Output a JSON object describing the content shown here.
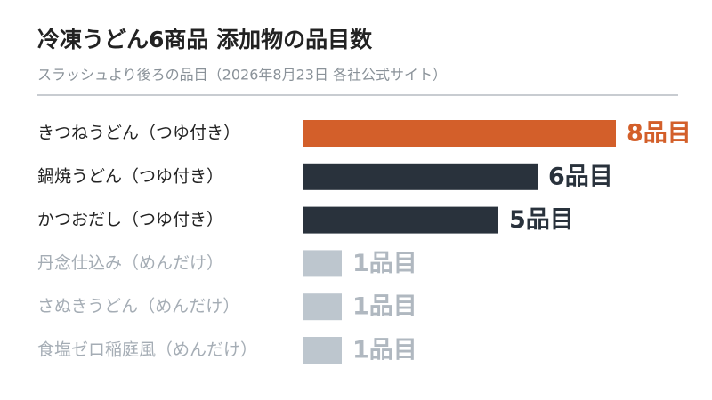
{
  "chart_data": {
    "type": "hbar",
    "title": "冷凍うどん6商品 添加物の品目数",
    "subtitle": "スラッシュより後ろの品目（2026年8月23日 各社公式サイト）",
    "categories": [
      "きつねうどん（つゆ付き）",
      "鍋焼うどん（つゆ付き）",
      "かつおだし（つゆ付き）",
      "丹念仕込み（めんだけ）",
      "さぬきうどん（めんだけ）",
      "食塩ゼロ稲庭風（めんだけ）"
    ],
    "values": [
      8,
      6,
      5,
      1,
      1,
      1
    ],
    "value_labels": [
      "8品目",
      "6品目",
      "5品目",
      "1品目",
      "1品目",
      "1品目"
    ],
    "colors": [
      "#d35f2a",
      "#29323c",
      "#29323c",
      "#bdc6ce",
      "#bdc6ce",
      "#bdc6ce"
    ],
    "label_colors": [
      "#222222",
      "#222222",
      "#222222",
      "#a5adb5",
      "#a5adb5",
      "#a5adb5"
    ]
  }
}
